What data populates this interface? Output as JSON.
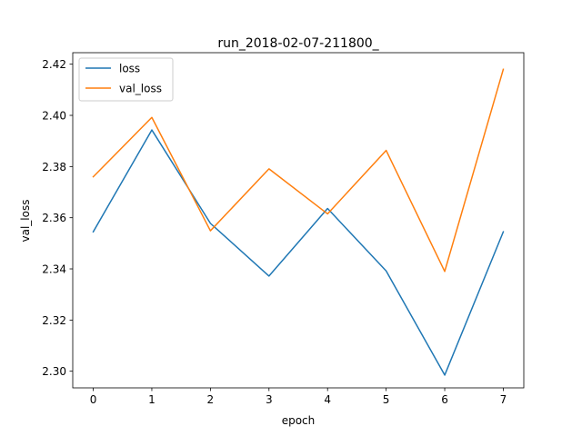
{
  "chart_data": {
    "type": "line",
    "title": "run_2018-02-07-211800_",
    "xlabel": "epoch",
    "ylabel": "val_loss",
    "x": [
      0,
      1,
      2,
      3,
      4,
      5,
      6,
      7
    ],
    "xlim": [
      -0.35,
      7.35
    ],
    "ylim": [
      2.2935,
      2.4245
    ],
    "xticks": [
      0,
      1,
      2,
      3,
      4,
      5,
      6,
      7
    ],
    "xtick_labels": [
      "0",
      "1",
      "2",
      "3",
      "4",
      "5",
      "6",
      "7"
    ],
    "yticks": [
      2.3,
      2.32,
      2.34,
      2.36,
      2.38,
      2.4,
      2.42
    ],
    "ytick_labels": [
      "2.30",
      "2.32",
      "2.34",
      "2.36",
      "2.38",
      "2.40",
      "2.42"
    ],
    "grid": false,
    "legend_position": "top-left",
    "series": [
      {
        "name": "loss",
        "color": "#1f77b4",
        "values": [
          2.3545,
          2.3943,
          2.3578,
          2.3372,
          2.3636,
          2.3392,
          2.2985,
          2.3545
        ]
      },
      {
        "name": "val_loss",
        "color": "#ff7f0e",
        "values": [
          2.376,
          2.3992,
          2.3549,
          2.3791,
          2.3615,
          2.3863,
          2.339,
          2.418
        ]
      }
    ]
  }
}
